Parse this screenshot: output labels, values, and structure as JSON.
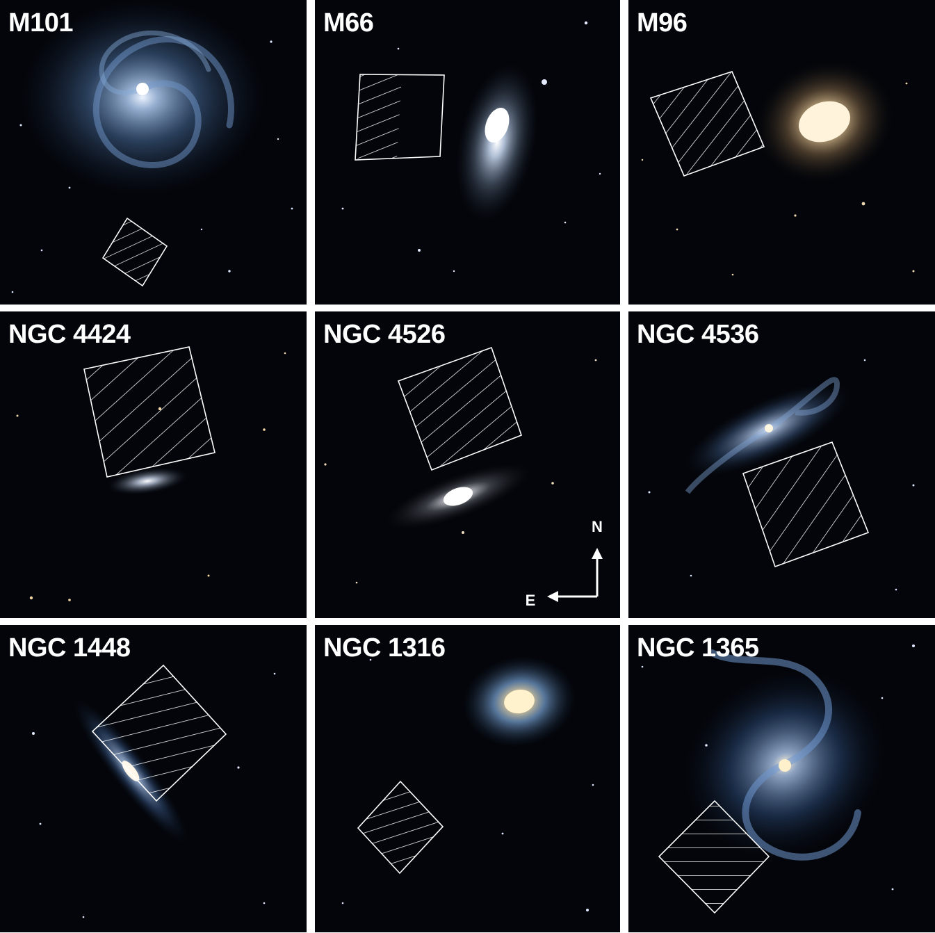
{
  "panels": [
    {
      "name": "M101"
    },
    {
      "name": "M66"
    },
    {
      "name": "M96"
    },
    {
      "name": "NGC 4424"
    },
    {
      "name": "NGC 4526"
    },
    {
      "name": "NGC 4536"
    },
    {
      "name": "NGC 1448"
    },
    {
      "name": "NGC 1316"
    },
    {
      "name": "NGC 1365"
    }
  ],
  "compass": {
    "north": "N",
    "east": "E"
  },
  "colors": {
    "sky": "#03050a",
    "spiral_blue": "#7aa6d8",
    "elliptical_gold": "#f3d9a8",
    "footprint": "#ffffff",
    "panel_gap": "#ffffff"
  }
}
